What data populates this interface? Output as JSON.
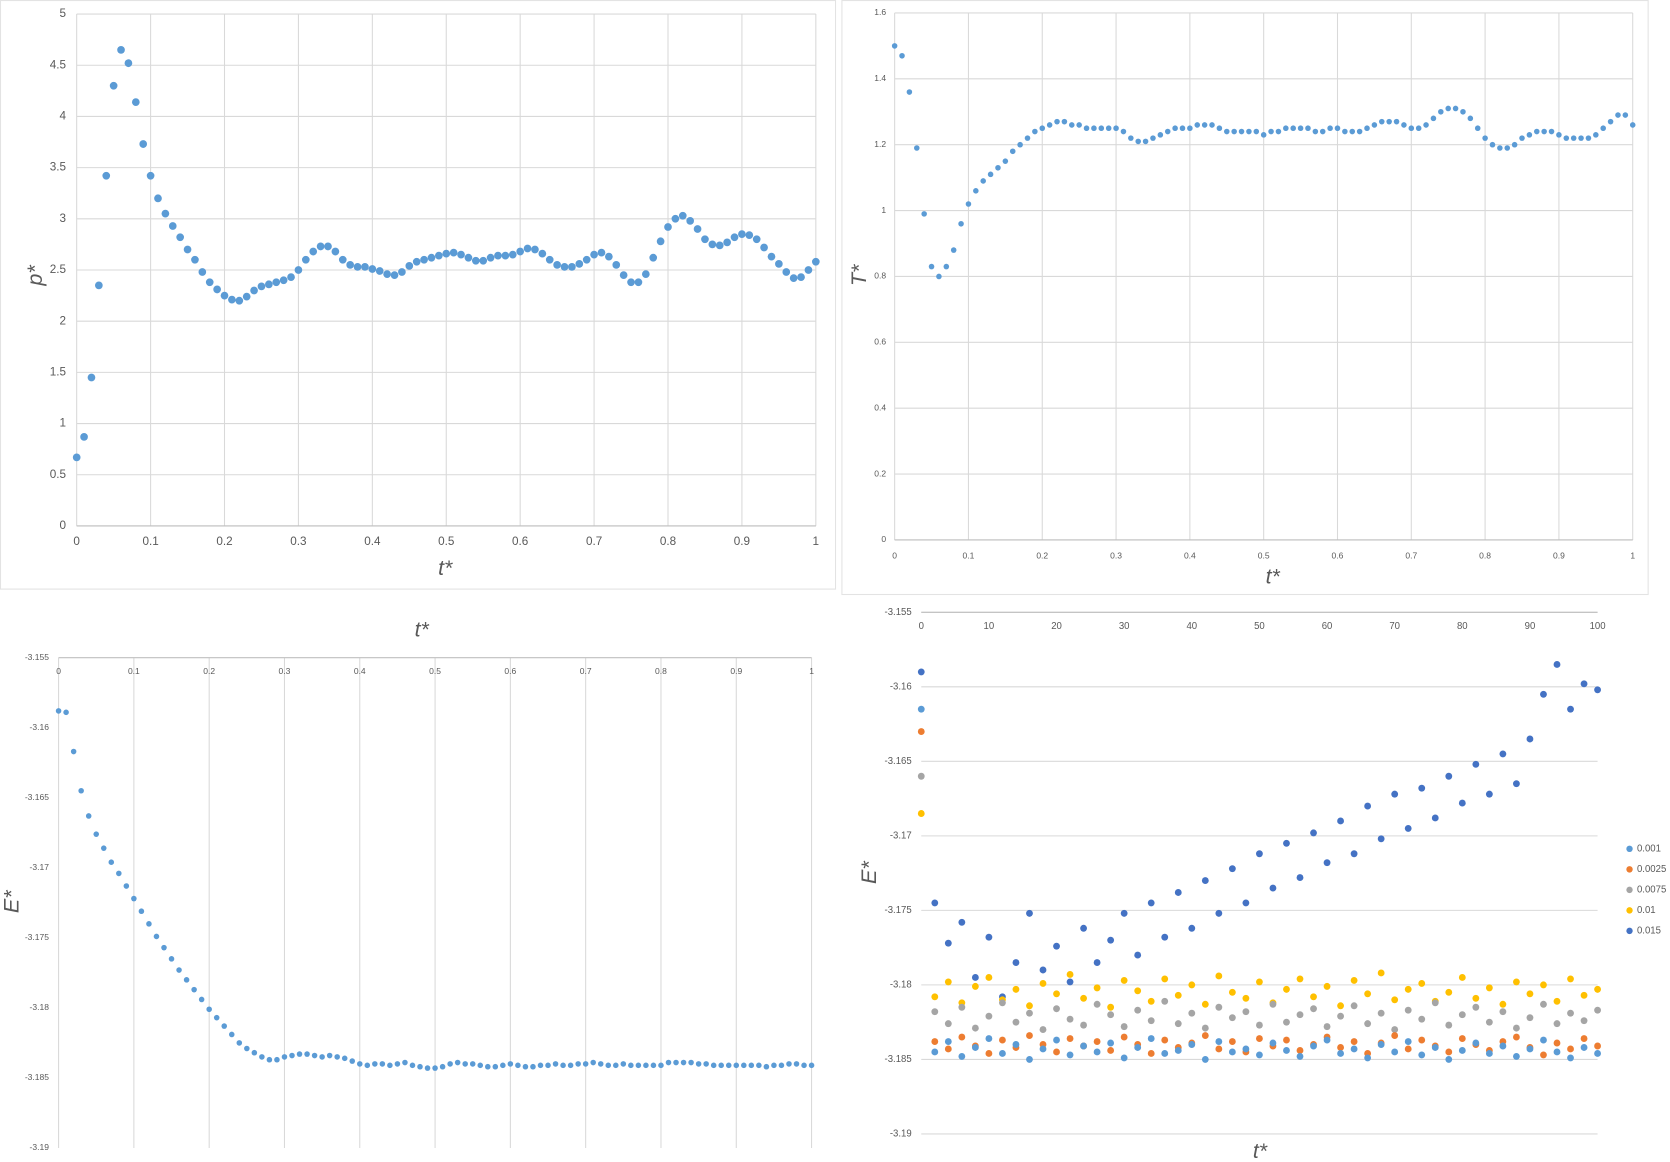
{
  "chart_data": [
    {
      "type": "scatter",
      "x_label": "t*",
      "y_label": "p*",
      "color": "#5b9bd5",
      "x_axis_position": "bottom",
      "grid_x": true,
      "grid_y": true,
      "xlim": [
        0,
        1
      ],
      "xticks": [
        0,
        0.1,
        0.2,
        0.3,
        0.4,
        0.5,
        0.6,
        0.7,
        0.8,
        0.9,
        1
      ],
      "ylim": [
        0,
        5
      ],
      "yticks": [
        0,
        0.5,
        1,
        1.5,
        2,
        2.5,
        3,
        3.5,
        4,
        4.5,
        5
      ],
      "x": [
        0,
        0.01,
        0.02,
        0.03,
        0.04,
        0.05,
        0.06,
        0.07,
        0.08,
        0.09,
        0.1,
        0.11,
        0.12,
        0.13,
        0.14,
        0.15,
        0.16,
        0.17,
        0.18,
        0.19,
        0.2,
        0.21,
        0.22,
        0.23,
        0.24,
        0.25,
        0.26,
        0.27,
        0.28,
        0.29,
        0.3,
        0.31,
        0.32,
        0.33,
        0.34,
        0.35,
        0.36,
        0.37,
        0.38,
        0.39,
        0.4,
        0.41,
        0.42,
        0.43,
        0.44,
        0.45,
        0.46,
        0.47,
        0.48,
        0.49,
        0.5,
        0.51,
        0.52,
        0.53,
        0.54,
        0.55,
        0.56,
        0.57,
        0.58,
        0.59,
        0.6,
        0.61,
        0.62,
        0.63,
        0.64,
        0.65,
        0.66,
        0.67,
        0.68,
        0.69,
        0.7,
        0.71,
        0.72,
        0.73,
        0.74,
        0.75,
        0.76,
        0.77,
        0.78,
        0.79,
        0.8,
        0.81,
        0.82,
        0.83,
        0.84,
        0.85,
        0.86,
        0.87,
        0.88,
        0.89,
        0.9,
        0.91,
        0.92,
        0.93,
        0.94,
        0.95,
        0.96,
        0.97,
        0.98,
        0.99,
        1
      ],
      "values": [
        0.67,
        0.87,
        1.45,
        2.35,
        3.42,
        4.3,
        4.65,
        4.52,
        4.14,
        3.73,
        3.42,
        3.2,
        3.05,
        2.93,
        2.82,
        2.7,
        2.6,
        2.48,
        2.38,
        2.31,
        2.25,
        2.21,
        2.2,
        2.24,
        2.3,
        2.34,
        2.36,
        2.38,
        2.4,
        2.43,
        2.5,
        2.6,
        2.68,
        2.73,
        2.73,
        2.68,
        2.6,
        2.55,
        2.53,
        2.53,
        2.51,
        2.49,
        2.46,
        2.45,
        2.48,
        2.54,
        2.58,
        2.6,
        2.62,
        2.64,
        2.66,
        2.67,
        2.65,
        2.62,
        2.59,
        2.59,
        2.62,
        2.64,
        2.64,
        2.65,
        2.68,
        2.71,
        2.7,
        2.66,
        2.6,
        2.55,
        2.53,
        2.53,
        2.56,
        2.6,
        2.65,
        2.67,
        2.63,
        2.55,
        2.45,
        2.38,
        2.38,
        2.46,
        2.62,
        2.78,
        2.92,
        3.0,
        3.03,
        2.98,
        2.9,
        2.8,
        2.75,
        2.74,
        2.77,
        2.82,
        2.85,
        2.84,
        2.8,
        2.72,
        2.63,
        2.56,
        2.48,
        2.42,
        2.43,
        2.5,
        2.58
      ]
    },
    {
      "type": "scatter",
      "x_label": "t*",
      "y_label": "T*",
      "color": "#5b9bd5",
      "x_axis_position": "bottom",
      "grid_x": true,
      "grid_y": true,
      "xlim": [
        0,
        1
      ],
      "xticks": [
        0,
        0.1,
        0.2,
        0.3,
        0.4,
        0.5,
        0.6,
        0.7,
        0.8,
        0.9,
        1
      ],
      "ylim": [
        0,
        1.6
      ],
      "yticks": [
        0,
        0.2,
        0.4,
        0.6,
        0.8,
        1,
        1.2,
        1.4,
        1.6
      ],
      "x": [
        0,
        0.01,
        0.02,
        0.03,
        0.04,
        0.05,
        0.06,
        0.07,
        0.08,
        0.09,
        0.1,
        0.11,
        0.12,
        0.13,
        0.14,
        0.15,
        0.16,
        0.17,
        0.18,
        0.19,
        0.2,
        0.21,
        0.22,
        0.23,
        0.24,
        0.25,
        0.26,
        0.27,
        0.28,
        0.29,
        0.3,
        0.31,
        0.32,
        0.33,
        0.34,
        0.35,
        0.36,
        0.37,
        0.38,
        0.39,
        0.4,
        0.41,
        0.42,
        0.43,
        0.44,
        0.45,
        0.46,
        0.47,
        0.48,
        0.49,
        0.5,
        0.51,
        0.52,
        0.53,
        0.54,
        0.55,
        0.56,
        0.57,
        0.58,
        0.59,
        0.6,
        0.61,
        0.62,
        0.63,
        0.64,
        0.65,
        0.66,
        0.67,
        0.68,
        0.69,
        0.7,
        0.71,
        0.72,
        0.73,
        0.74,
        0.75,
        0.76,
        0.77,
        0.78,
        0.79,
        0.8,
        0.81,
        0.82,
        0.83,
        0.84,
        0.85,
        0.86,
        0.87,
        0.88,
        0.89,
        0.9,
        0.91,
        0.92,
        0.93,
        0.94,
        0.95,
        0.96,
        0.97,
        0.98,
        0.99,
        1
      ],
      "values": [
        1.5,
        1.47,
        1.36,
        1.19,
        0.99,
        0.83,
        0.8,
        0.83,
        0.88,
        0.96,
        1.02,
        1.06,
        1.09,
        1.11,
        1.13,
        1.15,
        1.18,
        1.2,
        1.22,
        1.24,
        1.25,
        1.26,
        1.27,
        1.27,
        1.26,
        1.26,
        1.25,
        1.25,
        1.25,
        1.25,
        1.25,
        1.24,
        1.22,
        1.21,
        1.21,
        1.22,
        1.23,
        1.24,
        1.25,
        1.25,
        1.25,
        1.26,
        1.26,
        1.26,
        1.25,
        1.24,
        1.24,
        1.24,
        1.24,
        1.24,
        1.23,
        1.24,
        1.24,
        1.25,
        1.25,
        1.25,
        1.25,
        1.24,
        1.24,
        1.25,
        1.25,
        1.24,
        1.24,
        1.24,
        1.25,
        1.26,
        1.27,
        1.27,
        1.27,
        1.26,
        1.25,
        1.25,
        1.26,
        1.28,
        1.3,
        1.31,
        1.31,
        1.3,
        1.28,
        1.25,
        1.22,
        1.2,
        1.19,
        1.19,
        1.2,
        1.22,
        1.23,
        1.24,
        1.24,
        1.24,
        1.23,
        1.22,
        1.22,
        1.22,
        1.22,
        1.23,
        1.25,
        1.27,
        1.29,
        1.29,
        1.26
      ]
    },
    {
      "type": "scatter",
      "x_label": "t*",
      "y_label": "E*",
      "color": "#5b9bd5",
      "x_axis_position": "top",
      "grid_x": true,
      "grid_y": false,
      "xlim": [
        0,
        1
      ],
      "xticks": [
        0,
        0.1,
        0.2,
        0.3,
        0.4,
        0.5,
        0.6,
        0.7,
        0.8,
        0.9,
        1
      ],
      "ylim": [
        -3.19,
        -3.155
      ],
      "yticks": [
        -3.155,
        -3.16,
        -3.165,
        -3.17,
        -3.175,
        -3.18,
        -3.185,
        -3.19
      ],
      "x": [
        0,
        0.01,
        0.02,
        0.03,
        0.04,
        0.05,
        0.06,
        0.07,
        0.08,
        0.09,
        0.1,
        0.11,
        0.12,
        0.13,
        0.14,
        0.15,
        0.16,
        0.17,
        0.18,
        0.19,
        0.2,
        0.21,
        0.22,
        0.23,
        0.24,
        0.25,
        0.26,
        0.27,
        0.28,
        0.29,
        0.3,
        0.31,
        0.32,
        0.33,
        0.34,
        0.35,
        0.36,
        0.37,
        0.38,
        0.39,
        0.4,
        0.41,
        0.42,
        0.43,
        0.44,
        0.45,
        0.46,
        0.47,
        0.48,
        0.49,
        0.5,
        0.51,
        0.52,
        0.53,
        0.54,
        0.55,
        0.56,
        0.57,
        0.58,
        0.59,
        0.6,
        0.61,
        0.62,
        0.63,
        0.64,
        0.65,
        0.66,
        0.67,
        0.68,
        0.69,
        0.7,
        0.71,
        0.72,
        0.73,
        0.74,
        0.75,
        0.76,
        0.77,
        0.78,
        0.79,
        0.8,
        0.81,
        0.82,
        0.83,
        0.84,
        0.85,
        0.86,
        0.87,
        0.88,
        0.89,
        0.9,
        0.91,
        0.92,
        0.93,
        0.94,
        0.95,
        0.96,
        0.97,
        0.98,
        0.99,
        1
      ],
      "values": [
        -3.1588,
        -3.1589,
        -3.1617,
        -3.1645,
        -3.1663,
        -3.1676,
        -3.1686,
        -3.1696,
        -3.1704,
        -3.1713,
        -3.1722,
        -3.1731,
        -3.174,
        -3.1749,
        -3.1757,
        -3.1765,
        -3.1773,
        -3.178,
        -3.1787,
        -3.1794,
        -3.1801,
        -3.1807,
        -3.1813,
        -3.1819,
        -3.1825,
        -3.1829,
        -3.1832,
        -3.1835,
        -3.1837,
        -3.1837,
        -3.1835,
        -3.1834,
        -3.1833,
        -3.1833,
        -3.1834,
        -3.1835,
        -3.1834,
        -3.1835,
        -3.1836,
        -3.1838,
        -3.184,
        -3.1841,
        -3.184,
        -3.184,
        -3.1841,
        -3.184,
        -3.1839,
        -3.1841,
        -3.1842,
        -3.1843,
        -3.1843,
        -3.1842,
        -3.184,
        -3.1839,
        -3.184,
        -3.184,
        -3.1841,
        -3.1842,
        -3.1842,
        -3.1841,
        -3.184,
        -3.1841,
        -3.1842,
        -3.1842,
        -3.1841,
        -3.1841,
        -3.184,
        -3.1841,
        -3.1841,
        -3.184,
        -3.184,
        -3.1839,
        -3.184,
        -3.1841,
        -3.1841,
        -3.184,
        -3.1841,
        -3.1841,
        -3.1841,
        -3.1841,
        -3.1841,
        -3.1839,
        -3.1839,
        -3.1839,
        -3.1839,
        -3.184,
        -3.184,
        -3.1841,
        -3.1841,
        -3.1841,
        -3.1841,
        -3.1841,
        -3.1841,
        -3.1841,
        -3.1842,
        -3.1841,
        -3.1841,
        -3.184,
        -3.184,
        -3.1841,
        -3.1841
      ]
    },
    {
      "type": "scatter",
      "x_label": "t*",
      "y_label": "E*",
      "x_axis_position": "top",
      "grid_x": false,
      "grid_y": true,
      "legend": "right",
      "xlim": [
        0,
        100
      ],
      "xticks": [
        0,
        10,
        20,
        30,
        40,
        50,
        60,
        70,
        80,
        90,
        100
      ],
      "ylim": [
        -3.19,
        -3.155
      ],
      "yticks": [
        -3.155,
        -3.16,
        -3.165,
        -3.17,
        -3.175,
        -3.18,
        -3.185,
        -3.19
      ],
      "x": [
        0,
        2,
        4,
        6,
        8,
        10,
        12,
        14,
        16,
        18,
        20,
        22,
        24,
        26,
        28,
        30,
        32,
        34,
        36,
        38,
        40,
        42,
        44,
        46,
        48,
        50,
        52,
        54,
        56,
        58,
        60,
        62,
        64,
        66,
        68,
        70,
        72,
        74,
        76,
        78,
        80,
        82,
        84,
        86,
        88,
        90,
        92,
        94,
        96,
        98,
        100
      ],
      "series": [
        {
          "name": "0.001",
          "color": "#5b9bd5",
          "values": [
            -3.1615,
            -3.1845,
            -3.1838,
            -3.1848,
            -3.1842,
            -3.1836,
            -3.1846,
            -3.184,
            -3.185,
            -3.1843,
            -3.1837,
            -3.1847,
            -3.1841,
            -3.1845,
            -3.1839,
            -3.1849,
            -3.1842,
            -3.1836,
            -3.1846,
            -3.1844,
            -3.184,
            -3.185,
            -3.1838,
            -3.1845,
            -3.1843,
            -3.1847,
            -3.1839,
            -3.1844,
            -3.1848,
            -3.1841,
            -3.1837,
            -3.1846,
            -3.1843,
            -3.1849,
            -3.184,
            -3.1845,
            -3.1838,
            -3.1847,
            -3.1842,
            -3.185,
            -3.1844,
            -3.1839,
            -3.1846,
            -3.1841,
            -3.1848,
            -3.1843,
            -3.1837,
            -3.1845,
            -3.1849,
            -3.1842,
            -3.1846
          ]
        },
        {
          "name": "0.0025",
          "color": "#ed7d31",
          "values": [
            -3.163,
            -3.1838,
            -3.1843,
            -3.1835,
            -3.1841,
            -3.1846,
            -3.1837,
            -3.1842,
            -3.1834,
            -3.184,
            -3.1845,
            -3.1836,
            -3.1841,
            -3.1838,
            -3.1844,
            -3.1835,
            -3.184,
            -3.1846,
            -3.1837,
            -3.1842,
            -3.1839,
            -3.1834,
            -3.1843,
            -3.1838,
            -3.1845,
            -3.1836,
            -3.1841,
            -3.1837,
            -3.1844,
            -3.184,
            -3.1835,
            -3.1842,
            -3.1838,
            -3.1846,
            -3.1839,
            -3.1834,
            -3.1843,
            -3.1837,
            -3.1841,
            -3.1845,
            -3.1836,
            -3.184,
            -3.1844,
            -3.1838,
            -3.1835,
            -3.1842,
            -3.1847,
            -3.1839,
            -3.1843,
            -3.1836,
            -3.1841
          ]
        },
        {
          "name": "0.0075",
          "color": "#a5a5a5",
          "values": [
            -3.166,
            -3.1818,
            -3.1826,
            -3.1815,
            -3.1829,
            -3.1821,
            -3.1812,
            -3.1825,
            -3.1819,
            -3.183,
            -3.1816,
            -3.1823,
            -3.1827,
            -3.1813,
            -3.182,
            -3.1828,
            -3.1817,
            -3.1824,
            -3.1811,
            -3.1826,
            -3.1819,
            -3.1829,
            -3.1815,
            -3.1822,
            -3.1818,
            -3.1827,
            -3.1813,
            -3.1825,
            -3.182,
            -3.1816,
            -3.1828,
            -3.1821,
            -3.1814,
            -3.1826,
            -3.1819,
            -3.183,
            -3.1817,
            -3.1823,
            -3.1812,
            -3.1827,
            -3.182,
            -3.1815,
            -3.1825,
            -3.1818,
            -3.1829,
            -3.1822,
            -3.1813,
            -3.1826,
            -3.1819,
            -3.1824,
            -3.1817
          ]
        },
        {
          "name": "0.01",
          "color": "#ffc000",
          "values": [
            -3.1685,
            -3.1808,
            -3.1798,
            -3.1812,
            -3.1801,
            -3.1795,
            -3.181,
            -3.1803,
            -3.1814,
            -3.1799,
            -3.1806,
            -3.1793,
            -3.1809,
            -3.1802,
            -3.1815,
            -3.1797,
            -3.1804,
            -3.1811,
            -3.1796,
            -3.1807,
            -3.18,
            -3.1813,
            -3.1794,
            -3.1805,
            -3.1809,
            -3.1798,
            -3.1812,
            -3.1803,
            -3.1796,
            -3.1808,
            -3.1801,
            -3.1814,
            -3.1797,
            -3.1806,
            -3.1792,
            -3.181,
            -3.1803,
            -3.1799,
            -3.1811,
            -3.1805,
            -3.1795,
            -3.1809,
            -3.1802,
            -3.1813,
            -3.1798,
            -3.1806,
            -3.18,
            -3.1811,
            -3.1796,
            -3.1807,
            -3.1803
          ]
        },
        {
          "name": "0.015",
          "color": "#4472c4",
          "values": [
            -3.159,
            -3.1745,
            -3.1772,
            -3.1758,
            -3.1795,
            -3.1768,
            -3.1808,
            -3.1785,
            -3.1752,
            -3.179,
            -3.1774,
            -3.1798,
            -3.1762,
            -3.1785,
            -3.177,
            -3.1752,
            -3.178,
            -3.1745,
            -3.1768,
            -3.1738,
            -3.1762,
            -3.173,
            -3.1752,
            -3.1722,
            -3.1745,
            -3.1712,
            -3.1735,
            -3.1705,
            -3.1728,
            -3.1698,
            -3.1718,
            -3.169,
            -3.1712,
            -3.168,
            -3.1702,
            -3.1672,
            -3.1695,
            -3.1668,
            -3.1688,
            -3.166,
            -3.1678,
            -3.1652,
            -3.1672,
            -3.1645,
            -3.1665,
            -3.1635,
            -3.1605,
            -3.1585,
            -3.1615,
            -3.1598,
            -3.1602
          ]
        }
      ]
    }
  ]
}
